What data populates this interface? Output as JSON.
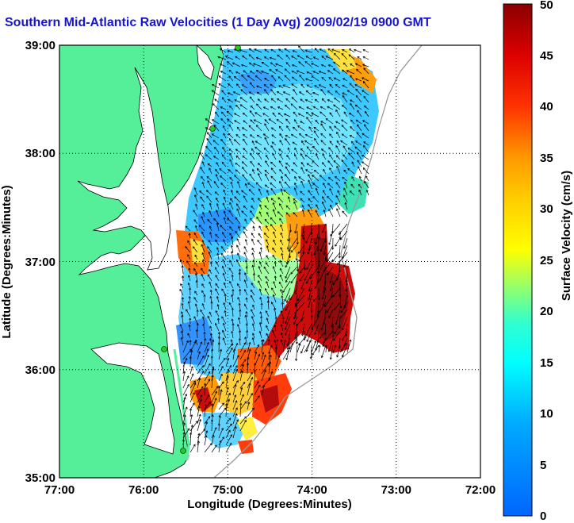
{
  "title": "Southern Mid-Atlantic Raw Velocities (1 Day Avg) 2009/02/19 0900 GMT",
  "xlabel": "Longitude (Degrees:Minutes)",
  "ylabel": "Latitude (Degrees:Minutes)",
  "colorbar_label": "Surface Velocity (cm/s)",
  "x_ticks": [
    "77:00",
    "76:00",
    "75:00",
    "74:00",
    "73:00",
    "72:00"
  ],
  "y_ticks": [
    "39:00",
    "38:00",
    "37:00",
    "36:00",
    "35:00"
  ],
  "colorbar_ticks": [
    "0",
    "5",
    "10",
    "15",
    "20",
    "25",
    "30",
    "35",
    "40",
    "45",
    "50"
  ],
  "map": {
    "lon_range": [
      -77,
      -72
    ],
    "lat_range": [
      35,
      39
    ],
    "velocity_range_cm_s": [
      0,
      50
    ],
    "colors": {
      "land": "#55ee99",
      "water": "#ffffff",
      "coast": "#000000",
      "stations": "#22cc22"
    }
  }
}
